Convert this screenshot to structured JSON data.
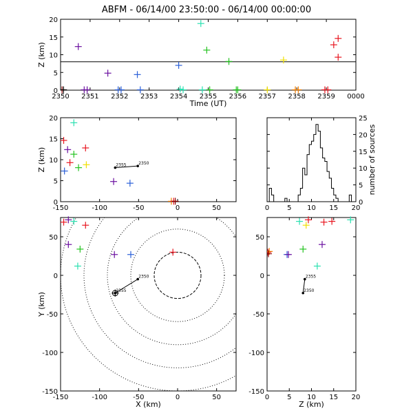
{
  "title": "ABFM - 06/14/00 23:50:00 - 06/14/00 00:00:00",
  "colors": {
    "black": "#000000",
    "red": "#e8141e",
    "orange": "#f07d00",
    "yellow": "#f0e000",
    "green": "#22c21e",
    "cyan": "#28e0b0",
    "blue": "#2a5fd8",
    "purple": "#6a0fa0",
    "darkred": "#8b0000"
  },
  "chart_data": [
    {
      "id": "time_height",
      "type": "scatter",
      "xlabel": "Time (UT)",
      "ylabel": "Z (km)",
      "xlim": [
        2350,
        2360
      ],
      "ylim": [
        0,
        20
      ],
      "x_tick_labels": [
        "2350",
        "2351",
        "2352",
        "2353",
        "2354",
        "2355",
        "2356",
        "2357",
        "2358",
        "2359",
        "0000"
      ],
      "y_ticks": [
        0,
        5,
        10,
        15,
        20
      ],
      "reference_line_y": 8,
      "points": [
        {
          "x": 2350.05,
          "y": 0.1,
          "c": "darkred"
        },
        {
          "x": 2350.1,
          "y": 0.1,
          "c": "black"
        },
        {
          "x": 2350.6,
          "y": 12.3,
          "c": "purple"
        },
        {
          "x": 2350.8,
          "y": 0.1,
          "c": "purple"
        },
        {
          "x": 2350.9,
          "y": 0.1,
          "c": "purple"
        },
        {
          "x": 2351.6,
          "y": 4.8,
          "c": "purple"
        },
        {
          "x": 2351.95,
          "y": 0.1,
          "c": "blue"
        },
        {
          "x": 2352.05,
          "y": 0.1,
          "c": "blue"
        },
        {
          "x": 2352.6,
          "y": 4.4,
          "c": "blue"
        },
        {
          "x": 2352.7,
          "y": 0.1,
          "c": "blue"
        },
        {
          "x": 2354.0,
          "y": 7.0,
          "c": "blue"
        },
        {
          "x": 2354.05,
          "y": 0.3,
          "c": "cyan"
        },
        {
          "x": 2354.15,
          "y": 0.1,
          "c": "cyan"
        },
        {
          "x": 2354.75,
          "y": 18.8,
          "c": "cyan"
        },
        {
          "x": 2354.8,
          "y": 0.1,
          "c": "cyan"
        },
        {
          "x": 2354.95,
          "y": 11.3,
          "c": "green"
        },
        {
          "x": 2355.05,
          "y": 0.1,
          "c": "green"
        },
        {
          "x": 2355.7,
          "y": 8.1,
          "c": "green"
        },
        {
          "x": 2355.95,
          "y": 0.1,
          "c": "green"
        },
        {
          "x": 2356.0,
          "y": 0.1,
          "c": "green"
        },
        {
          "x": 2357.0,
          "y": 0.1,
          "c": "yellow"
        },
        {
          "x": 2357.55,
          "y": 8.5,
          "c": "yellow"
        },
        {
          "x": 2357.95,
          "y": 0.1,
          "c": "orange"
        },
        {
          "x": 2358.05,
          "y": 0.1,
          "c": "orange"
        },
        {
          "x": 2358.95,
          "y": 0.1,
          "c": "red"
        },
        {
          "x": 2359.05,
          "y": 0.1,
          "c": "red"
        },
        {
          "x": 2359.25,
          "y": 12.8,
          "c": "red"
        },
        {
          "x": 2359.4,
          "y": 14.6,
          "c": "red"
        },
        {
          "x": 2359.4,
          "y": 9.3,
          "c": "red"
        }
      ]
    },
    {
      "id": "x_height",
      "type": "scatter",
      "xlabel": "",
      "ylabel": "Z (km)",
      "xlim": [
        -150,
        75
      ],
      "ylim": [
        0,
        20
      ],
      "x_ticks": [
        -150,
        -100,
        -50,
        0,
        50
      ],
      "y_ticks": [
        0,
        5,
        10,
        15,
        20
      ],
      "track": {
        "x": [
          -80,
          -51
        ],
        "y": [
          8.1,
          8.5
        ],
        "start_label": "2355",
        "end_label": "2350"
      },
      "points": [
        {
          "x": -146,
          "y": 14.6,
          "c": "red"
        },
        {
          "x": -141,
          "y": 12.4,
          "c": "purple"
        },
        {
          "x": -133,
          "y": 18.8,
          "c": "cyan"
        },
        {
          "x": -118,
          "y": 12.8,
          "c": "red"
        },
        {
          "x": -133,
          "y": 11.3,
          "c": "green"
        },
        {
          "x": -138,
          "y": 9.3,
          "c": "red"
        },
        {
          "x": -127,
          "y": 8.1,
          "c": "green"
        },
        {
          "x": -117,
          "y": 8.8,
          "c": "yellow"
        },
        {
          "x": -145,
          "y": 7.3,
          "c": "blue"
        },
        {
          "x": -82,
          "y": 4.8,
          "c": "purple"
        },
        {
          "x": -61,
          "y": 4.4,
          "c": "blue"
        },
        {
          "x": -8,
          "y": 0.1,
          "c": "orange"
        },
        {
          "x": -5,
          "y": 0.1,
          "c": "red"
        },
        {
          "x": -3,
          "y": 0.1,
          "c": "darkred"
        }
      ]
    },
    {
      "id": "histogram",
      "type": "histogram",
      "xlabel": "",
      "ylabel": "number of sources",
      "xlim": [
        0,
        20
      ],
      "ylim": [
        0,
        25
      ],
      "x_ticks": [
        0,
        5,
        10,
        15,
        20
      ],
      "y_ticks": [
        0,
        5,
        10,
        15,
        20,
        25
      ],
      "bin_width": 0.5,
      "counts": [
        0,
        4,
        2,
        0,
        0,
        0,
        0,
        0,
        1,
        0,
        0,
        0,
        0,
        0,
        2,
        4,
        10,
        8,
        14,
        17,
        18,
        20,
        23,
        21,
        16,
        13,
        12,
        9,
        7,
        4,
        2,
        1,
        0,
        0,
        0,
        0,
        0,
        2,
        0,
        0
      ]
    },
    {
      "id": "plan_view",
      "type": "scatter",
      "xlabel": "X (km)",
      "ylabel": "Y (km)",
      "xlim": [
        -150,
        75
      ],
      "ylim": [
        -150,
        75
      ],
      "x_ticks": [
        -150,
        -100,
        -50,
        0,
        50
      ],
      "y_ticks": [
        -150,
        -100,
        -50,
        0,
        50
      ],
      "range_rings_km": [
        30,
        60,
        90,
        120,
        150
      ],
      "track": {
        "x": [
          -80,
          -51
        ],
        "y": [
          -23,
          -5
        ],
        "start_label": "2355",
        "end_label": "2350"
      },
      "points": [
        {
          "x": -146,
          "y": 69,
          "c": "red"
        },
        {
          "x": -140,
          "y": 72,
          "c": "purple"
        },
        {
          "x": -133,
          "y": 70,
          "c": "cyan"
        },
        {
          "x": -118,
          "y": 65,
          "c": "red"
        },
        {
          "x": -140,
          "y": 40,
          "c": "purple"
        },
        {
          "x": -125,
          "y": 34,
          "c": "green"
        },
        {
          "x": -128,
          "y": 12,
          "c": "cyan"
        },
        {
          "x": -81,
          "y": 27,
          "c": "purple"
        },
        {
          "x": -60,
          "y": 27,
          "c": "blue"
        },
        {
          "x": -6,
          "y": 30,
          "c": "red"
        },
        {
          "x": -80,
          "y": -23,
          "c": "black"
        }
      ]
    },
    {
      "id": "z_plan",
      "type": "scatter",
      "xlabel": "Z (km)",
      "ylabel": "",
      "xlim": [
        0,
        20
      ],
      "ylim": [
        -150,
        75
      ],
      "x_ticks": [
        0,
        5,
        10,
        15,
        20
      ],
      "y_ticks": [
        -150,
        -100,
        -50,
        0,
        50
      ],
      "track": {
        "x": [
          8.5,
          8.1
        ],
        "y": [
          -5,
          -23
        ],
        "start_label": "2355",
        "end_label": "2350"
      },
      "points": [
        {
          "x": 0.2,
          "y": 30,
          "c": "red"
        },
        {
          "x": 0.5,
          "y": 31,
          "c": "orange"
        },
        {
          "x": 0.3,
          "y": 28,
          "c": "darkred"
        },
        {
          "x": 4.5,
          "y": 27,
          "c": "blue"
        },
        {
          "x": 4.8,
          "y": 27,
          "c": "purple"
        },
        {
          "x": 7.3,
          "y": 70,
          "c": "cyan"
        },
        {
          "x": 8.1,
          "y": 34,
          "c": "green"
        },
        {
          "x": 8.8,
          "y": 65,
          "c": "yellow"
        },
        {
          "x": 9.3,
          "y": 72,
          "c": "red"
        },
        {
          "x": 11.3,
          "y": 12,
          "c": "cyan"
        },
        {
          "x": 12.4,
          "y": 40,
          "c": "purple"
        },
        {
          "x": 12.8,
          "y": 69,
          "c": "red"
        },
        {
          "x": 14.6,
          "y": 70,
          "c": "red"
        },
        {
          "x": 18.8,
          "y": 72,
          "c": "cyan"
        }
      ]
    }
  ]
}
